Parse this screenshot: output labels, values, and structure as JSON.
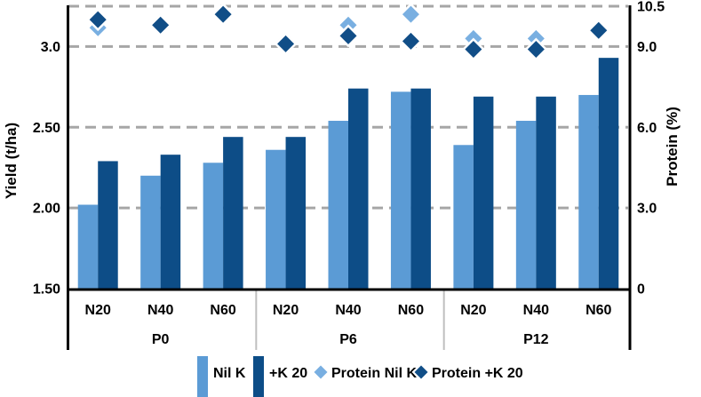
{
  "figure": {
    "background": "#FFFFFF"
  },
  "axes": {
    "left": {
      "title": "Yield (t/ha)",
      "range": [
        1.5,
        3.25
      ],
      "ticks": [
        {
          "label": "3.0",
          "value": 3.0
        },
        {
          "label": "2.50",
          "value": 2.5
        },
        {
          "label": "2.00",
          "value": 2.0
        },
        {
          "label": "1.50",
          "value": 1.5
        }
      ]
    },
    "right": {
      "title": "Protein (%)",
      "range": [
        0,
        10.5
      ],
      "ticks": [
        {
          "label": "10.5",
          "value": 10.5
        },
        {
          "label": "9.0",
          "value": 9.0
        },
        {
          "label": "6.0",
          "value": 6.0
        },
        {
          "label": "3.0",
          "value": 3.0
        },
        {
          "label": "0",
          "value": 0
        }
      ]
    },
    "x": {
      "group_labels": [
        "P0",
        "P6",
        "P12"
      ],
      "subgroup_labels": [
        "N20",
        "N40",
        "N60"
      ]
    }
  },
  "colors": {
    "bar_nil_k": "#5B9BD5",
    "bar_plus_k": "#0D4D87",
    "marker_protein_nil_k": "#79AFE1",
    "marker_protein_plus_k": "#114E87",
    "marker_border": "#FFFFFF",
    "gridline": "#A6A6A6",
    "group_separator": "#BFBFBF",
    "axis_line": "#000000",
    "text": "#000000"
  },
  "legend": [
    {
      "label": "Nil K",
      "swatch": "bar",
      "color": "#5B9BD5"
    },
    {
      "label": "+K 20",
      "swatch": "bar",
      "color": "#0D4D87"
    },
    {
      "label": "Protein Nil K",
      "swatch": "diamond",
      "color": "#79AFE1"
    },
    {
      "label": "Protein +K 20",
      "swatch": "diamond",
      "color": "#114E87"
    }
  ],
  "chart_data": {
    "type": "bar",
    "subtype": "combo-bar-scatter-dual-axis",
    "title": "",
    "xlabel": "",
    "ylabel_left": "Yield (t/ha)",
    "ylabel_right": "Protein (%)",
    "ylim_left": [
      1.5,
      3.25
    ],
    "ylim_right": [
      0,
      10.5
    ],
    "grid": "horizontal-dashed",
    "gridlines_right_axis_values": [
      3.0,
      6.0,
      9.0,
      10.5
    ],
    "legend_position": "bottom",
    "groups": [
      "P0",
      "P6",
      "P12"
    ],
    "categories": [
      "N20",
      "N40",
      "N60",
      "N20",
      "N40",
      "N60",
      "N20",
      "N40",
      "N60"
    ],
    "series": [
      {
        "name": "Nil K",
        "type": "bar",
        "axis": "left",
        "color": "#5B9BD5",
        "values": [
          2.02,
          2.2,
          2.28,
          2.36,
          2.54,
          2.72,
          2.39,
          2.54,
          2.7
        ]
      },
      {
        "name": "+K 20",
        "type": "bar",
        "axis": "left",
        "color": "#0D4D87",
        "values": [
          2.29,
          2.33,
          2.44,
          2.44,
          2.74,
          2.74,
          2.69,
          2.69,
          2.93
        ]
      },
      {
        "name": "Protein Nil K",
        "type": "scatter",
        "marker": "diamond",
        "axis": "right",
        "color": "#79AFE1",
        "values": [
          9.7,
          9.9,
          10.2,
          9.2,
          9.8,
          10.2,
          9.3,
          9.3,
          9.6
        ]
      },
      {
        "name": "Protein +K 20",
        "type": "scatter",
        "marker": "diamond",
        "axis": "right",
        "color": "#114E87",
        "values": [
          10.0,
          9.8,
          10.2,
          9.1,
          9.4,
          9.2,
          8.9,
          8.9,
          9.6
        ]
      }
    ]
  }
}
